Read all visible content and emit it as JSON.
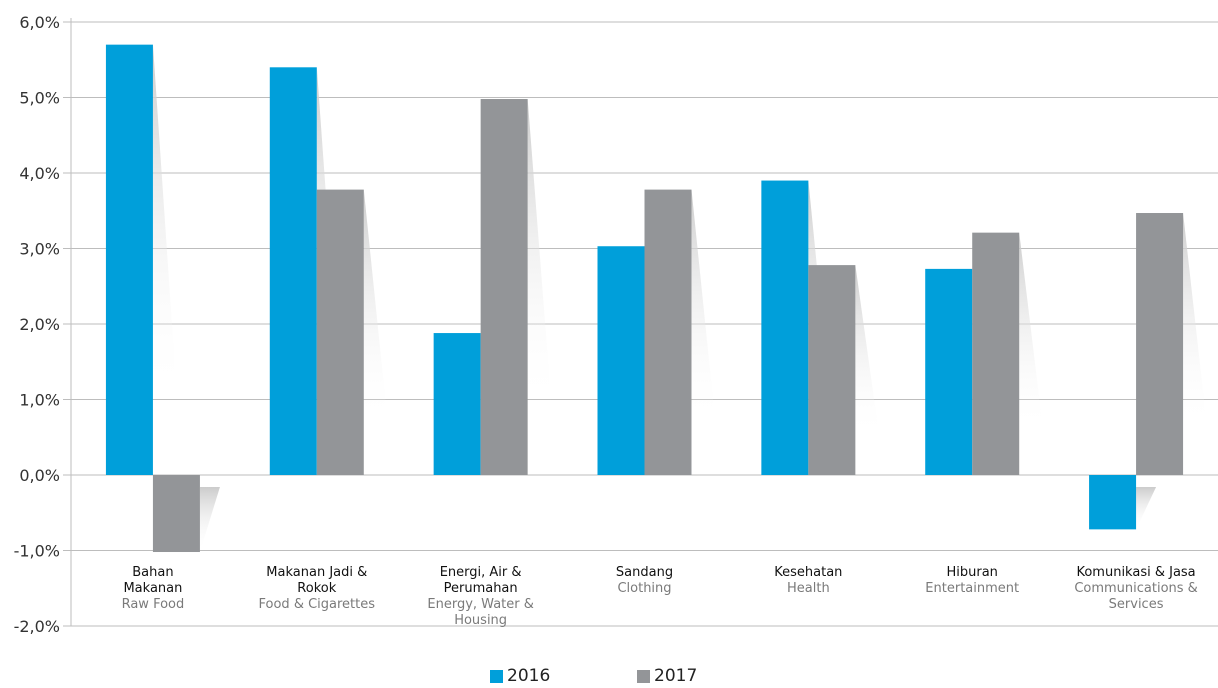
{
  "chart_data": {
    "type": "bar",
    "title": "",
    "xlabel": "",
    "ylabel": "",
    "ylim": [
      -2.0,
      6.0
    ],
    "yticks": [
      "6,0%",
      "5,0%",
      "4,0%",
      "3,0%",
      "2,0%",
      "1,0%",
      "0,0%",
      "-1,0%",
      "-2,0%"
    ],
    "ytick_values": [
      6,
      5,
      4,
      3,
      2,
      1,
      0,
      -1,
      -2
    ],
    "grid": true,
    "legend_position": "bottom",
    "categories": [
      {
        "label": [
          "Bahan",
          "Makanan"
        ],
        "sublabel": [
          "Raw Food"
        ]
      },
      {
        "label": [
          "Makanan Jadi &",
          "Rokok"
        ],
        "sublabel": [
          "Food & Cigarettes"
        ]
      },
      {
        "label": [
          "Energi, Air &",
          "Perumahan"
        ],
        "sublabel": [
          "Energy, Water &",
          "Housing"
        ]
      },
      {
        "label": [
          "Sandang"
        ],
        "sublabel": [
          "Clothing"
        ]
      },
      {
        "label": [
          "Kesehatan"
        ],
        "sublabel": [
          "Health"
        ]
      },
      {
        "label": [
          "Hiburan"
        ],
        "sublabel": [
          "Entertainment"
        ]
      },
      {
        "label": [
          "Komunikasi & Jasa"
        ],
        "sublabel": [
          "Communications &",
          "Services"
        ]
      }
    ],
    "series": [
      {
        "name": "2016",
        "color": "#009fda",
        "values": [
          5.7,
          5.4,
          1.88,
          3.03,
          3.9,
          2.73,
          -0.72
        ]
      },
      {
        "name": "2017",
        "color": "#939598",
        "values": [
          -1.02,
          3.78,
          4.98,
          3.78,
          2.78,
          3.21,
          3.47
        ]
      }
    ]
  },
  "legend": [
    {
      "name": "2016",
      "color": "#009fda"
    },
    {
      "name": "2017",
      "color": "#939598"
    }
  ]
}
